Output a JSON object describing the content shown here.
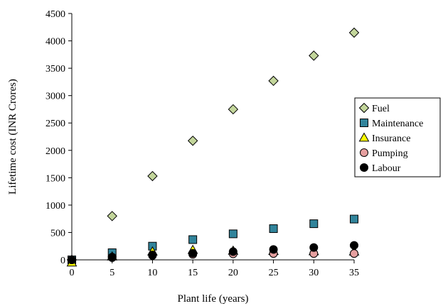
{
  "chart_data": {
    "type": "scatter",
    "xlabel": "Plant life (years)",
    "ylabel": "Lifetime cost (INR Crores)",
    "xlim": [
      0,
      35
    ],
    "ylim": [
      0,
      4500
    ],
    "x_ticks": [
      0,
      5,
      10,
      15,
      20,
      25,
      30,
      35
    ],
    "y_ticks": [
      0,
      500,
      1000,
      1500,
      2000,
      2500,
      3000,
      3500,
      4000,
      4500
    ],
    "grid": false,
    "legend_position": "right",
    "x": [
      0,
      5,
      10,
      15,
      20,
      25,
      30,
      35
    ],
    "series": [
      {
        "name": "Fuel",
        "marker": "diamond",
        "color": "#c3d69b",
        "values": [
          0,
          800,
          1530,
          2175,
          2750,
          3270,
          3730,
          4150
        ]
      },
      {
        "name": "Maintenance",
        "marker": "square",
        "color": "#31849b",
        "values": [
          0,
          130,
          250,
          370,
          475,
          570,
          660,
          745
        ]
      },
      {
        "name": "Insurance",
        "marker": "triangle",
        "color": "#ffff00",
        "values": [
          -50,
          60,
          150,
          180,
          165,
          160,
          155,
          150
        ]
      },
      {
        "name": "Pumping",
        "marker": "circle",
        "color": "#e6a0a0",
        "values": [
          0,
          50,
          80,
          100,
          110,
          115,
          115,
          115
        ]
      },
      {
        "name": "Labour",
        "marker": "circle",
        "color": "#000000",
        "values": [
          0,
          40,
          90,
          120,
          150,
          190,
          225,
          265
        ]
      }
    ]
  }
}
